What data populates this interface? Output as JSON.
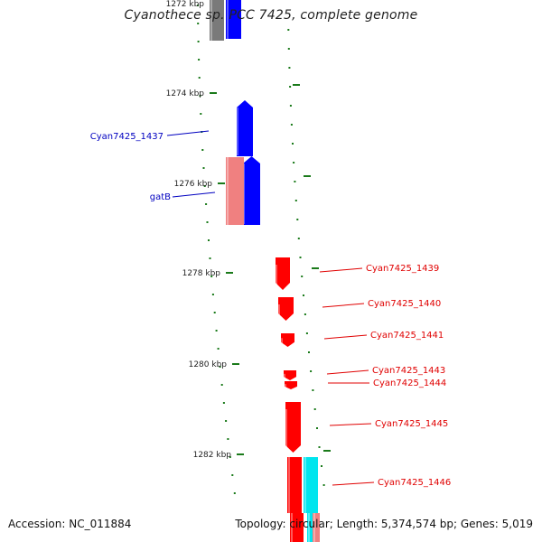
{
  "title": "Cyanothece sp. PCC 7425, complete genome",
  "accession": "Accession: NC_011884",
  "summary": "Topology: circular; Length: 5,374,574 bp; Genes: 5,019",
  "colors": {
    "backbone": "#8c8c8c",
    "tick": "#1a7a1a",
    "plus_strand": "#0000ff",
    "minus_strand": "#ff0000",
    "rna": "#f08080",
    "other": "#00e5ee",
    "neighbor": "#7a7a7a",
    "label_blue": "#0000c0",
    "label_red": "#e00000"
  },
  "ticks": [
    "1272 kbp",
    "1274 kbp",
    "1276 kbp",
    "1278 kbp",
    "1280 kbp",
    "1282 kbp"
  ],
  "labels": [
    {
      "text": "Cyan7425_1437",
      "strand": "plus"
    },
    {
      "text": "gatB",
      "strand": "plus"
    },
    {
      "text": "Cyan7425_1439",
      "strand": "minus"
    },
    {
      "text": "Cyan7425_1440",
      "strand": "minus"
    },
    {
      "text": "Cyan7425_1441",
      "strand": "minus"
    },
    {
      "text": "Cyan7425_1443",
      "strand": "minus"
    },
    {
      "text": "Cyan7425_1444",
      "strand": "minus"
    },
    {
      "text": "Cyan7425_1445",
      "strand": "minus"
    },
    {
      "text": "Cyan7425_1446",
      "strand": "minus"
    }
  ]
}
